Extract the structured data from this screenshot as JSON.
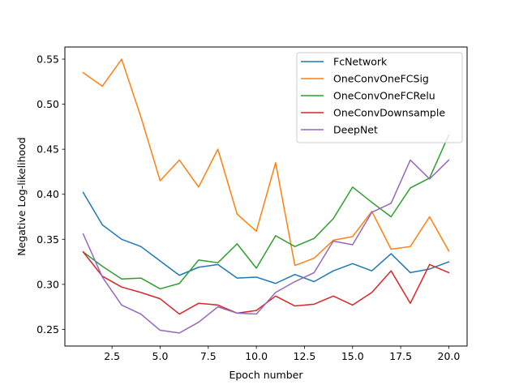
{
  "chart_data": {
    "type": "line",
    "title": "",
    "xlabel": "Epoch number",
    "ylabel": "Negative Log-likelihood",
    "xlim": [
      0.05,
      20.95
    ],
    "ylim": [
      0.2315,
      0.5635
    ],
    "xticks": [
      2.5,
      5.0,
      7.5,
      10.0,
      12.5,
      15.0,
      17.5,
      20.0
    ],
    "xtick_labels": [
      "2.5",
      "5.0",
      "7.5",
      "10.0",
      "12.5",
      "15.0",
      "17.5",
      "20.0"
    ],
    "yticks": [
      0.25,
      0.3,
      0.35,
      0.4,
      0.45,
      0.5,
      0.55
    ],
    "ytick_labels": [
      "0.25",
      "0.30",
      "0.35",
      "0.40",
      "0.45",
      "0.50",
      "0.55"
    ],
    "grid": false,
    "legend_position": "top-right",
    "x": [
      1,
      2,
      3,
      4,
      5,
      6,
      7,
      8,
      9,
      10,
      11,
      12,
      13,
      14,
      15,
      16,
      17,
      18,
      19,
      20
    ],
    "series": [
      {
        "name": "FcNetwork",
        "color": "#1f77b4",
        "values": [
          0.402,
          0.366,
          0.35,
          0.342,
          0.326,
          0.31,
          0.319,
          0.322,
          0.307,
          0.308,
          0.301,
          0.311,
          0.303,
          0.315,
          0.323,
          0.315,
          0.334,
          0.313,
          0.317,
          0.325
        ]
      },
      {
        "name": "OneConvOneFCSig",
        "color": "#ff7f0e",
        "values": [
          0.535,
          0.52,
          0.55,
          0.486,
          0.415,
          0.438,
          0.408,
          0.45,
          0.378,
          0.359,
          0.435,
          0.321,
          0.329,
          0.349,
          0.353,
          0.381,
          0.339,
          0.342,
          0.375,
          0.337
        ]
      },
      {
        "name": "OneConvOneFCRelu",
        "color": "#2ca02c",
        "values": [
          0.336,
          0.32,
          0.306,
          0.307,
          0.295,
          0.301,
          0.327,
          0.324,
          0.345,
          0.318,
          0.354,
          0.342,
          0.351,
          0.373,
          0.408,
          0.391,
          0.375,
          0.407,
          0.418,
          0.466
        ]
      },
      {
        "name": "OneConvDownsample",
        "color": "#d62728",
        "values": [
          0.336,
          0.309,
          0.297,
          0.291,
          0.284,
          0.267,
          0.279,
          0.277,
          0.268,
          0.271,
          0.287,
          0.276,
          0.278,
          0.287,
          0.277,
          0.291,
          0.315,
          0.279,
          0.322,
          0.313
        ]
      },
      {
        "name": "DeepNet",
        "color": "#9467bd",
        "values": [
          0.356,
          0.308,
          0.277,
          0.267,
          0.249,
          0.246,
          0.258,
          0.275,
          0.268,
          0.267,
          0.291,
          0.303,
          0.313,
          0.348,
          0.344,
          0.38,
          0.39,
          0.438,
          0.417,
          0.438
        ]
      }
    ]
  }
}
